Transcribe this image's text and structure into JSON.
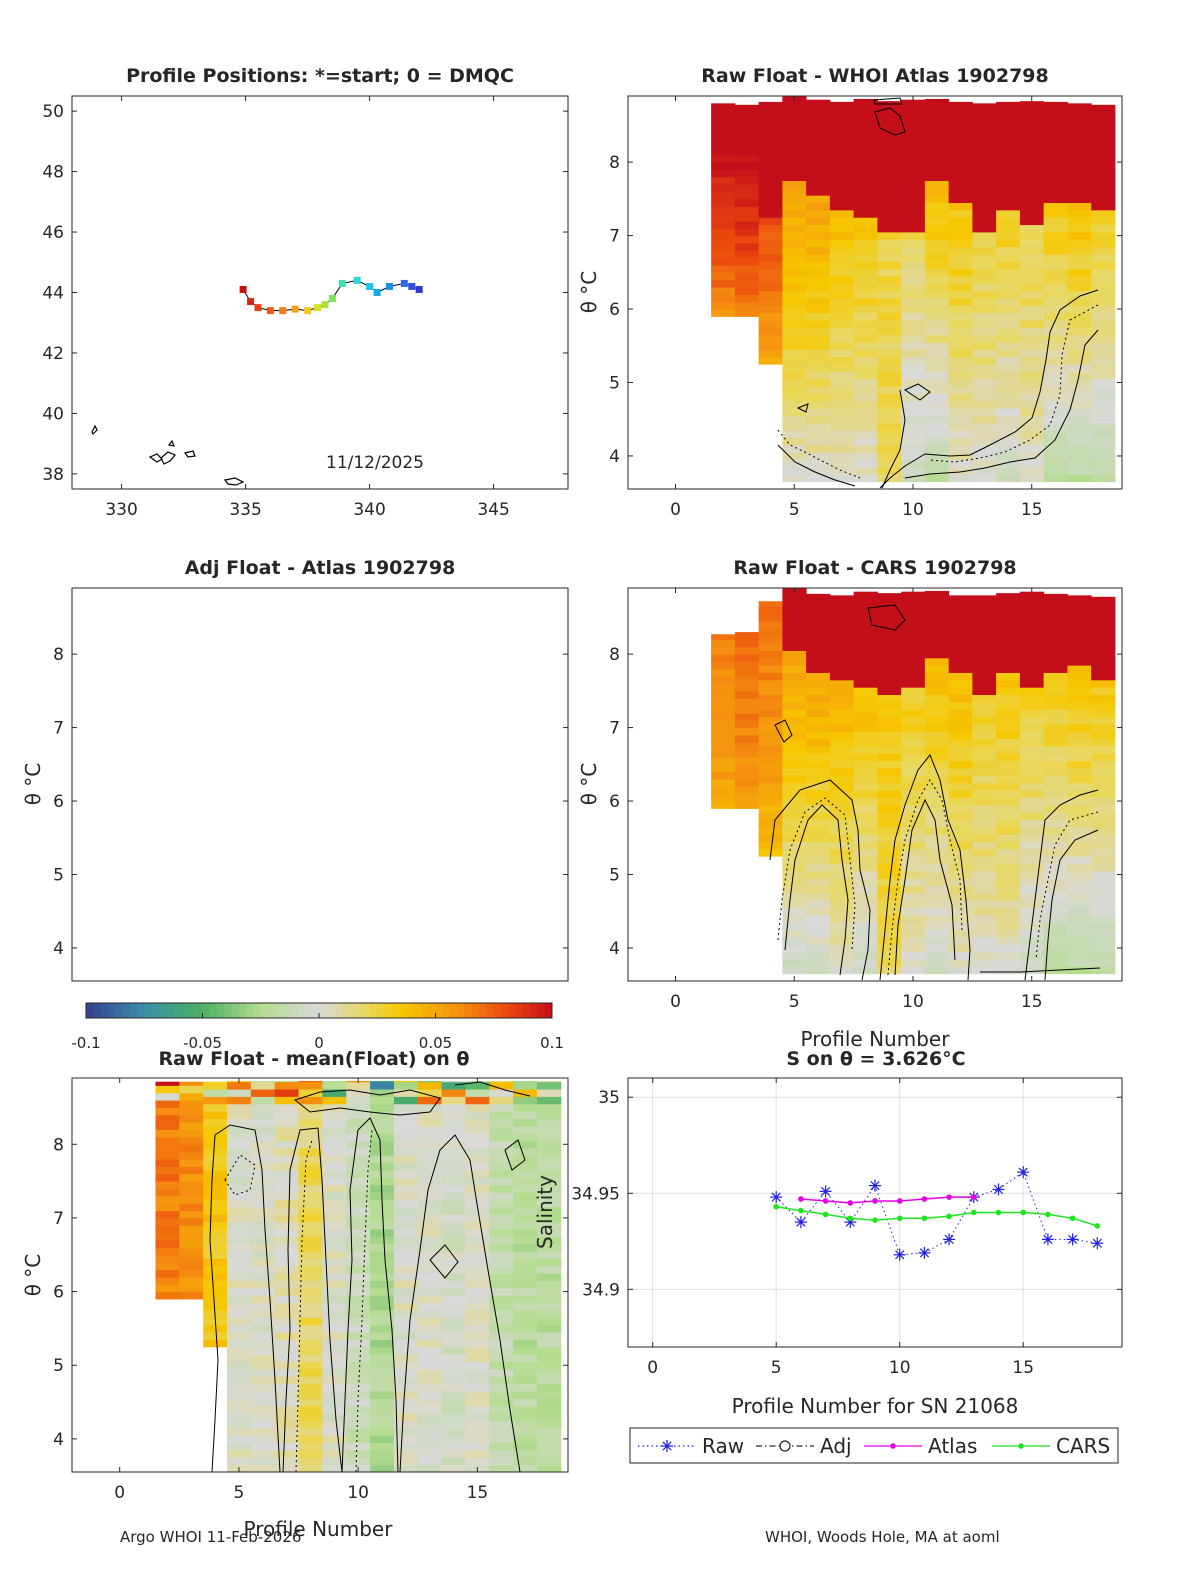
{
  "footer": {
    "left": "Argo WHOI 11-Feb-2026",
    "right": "WHOI, Woods Hole, MA at aoml"
  },
  "colorbar": {
    "min": -0.1,
    "max": 0.1,
    "ticks": [
      "-0.1",
      "-0.05",
      "0",
      "0.05",
      "0.1"
    ]
  },
  "chart_data": [
    {
      "id": "positions",
      "type": "scatter",
      "title": "Profile Positions: *=start; 0 = DMQC",
      "xlabel": "",
      "ylabel": "",
      "xlim": [
        328,
        348
      ],
      "ylim": [
        37.5,
        50.5
      ],
      "xticks": [
        "330",
        "335",
        "340",
        "345"
      ],
      "yticks": [
        "38",
        "40",
        "42",
        "44",
        "46",
        "48",
        "50"
      ],
      "date_label": "11/12/2025",
      "track": {
        "lon": [
          342.0,
          341.7,
          341.4,
          340.8,
          340.3,
          340.0,
          339.5,
          338.9,
          338.5,
          338.2,
          337.9,
          337.5,
          337.0,
          336.5,
          336.0,
          335.5,
          335.2,
          334.9
        ],
        "lat": [
          44.1,
          44.2,
          44.3,
          44.2,
          44.0,
          44.2,
          44.4,
          44.3,
          43.8,
          43.6,
          43.5,
          43.4,
          43.45,
          43.4,
          43.4,
          43.5,
          43.7,
          44.1
        ],
        "colors": [
          "#2b3fd0",
          "#2f55e0",
          "#3366ee",
          "#1d8ee6",
          "#18a9e6",
          "#22c3e8",
          "#2ed9de",
          "#38e3b0",
          "#7fe35a",
          "#a6e33a",
          "#d8e02a",
          "#f5c61f",
          "#f7a01a",
          "#f47c16",
          "#ef5a12",
          "#e6400f",
          "#d8250c",
          "#c8100a"
        ]
      }
    },
    {
      "id": "raw-atlas",
      "type": "heatmap",
      "title": "Raw Float - WHOI Atlas  1902798",
      "xlabel": "",
      "ylabel": "θ °C",
      "xlim": [
        -2,
        18.8
      ],
      "ylim": [
        3.55,
        8.9
      ],
      "xticks": [
        "0",
        "5",
        "10",
        "15"
      ],
      "yticks": [
        "4",
        "5",
        "6",
        "7",
        "8"
      ],
      "profiles": [
        2,
        3,
        4,
        5,
        6,
        7,
        8,
        9,
        10,
        11,
        12,
        13,
        14,
        15,
        16,
        17,
        18
      ],
      "theta_min": [
        5.9,
        5.9,
        5.25,
        3.65,
        3.65,
        3.65,
        3.65,
        3.65,
        3.65,
        3.65,
        3.65,
        3.65,
        3.65,
        3.65,
        3.65,
        3.65,
        3.65
      ],
      "theta_max": [
        8.8,
        8.78,
        8.82,
        8.9,
        8.85,
        8.82,
        8.86,
        8.83,
        8.85,
        8.86,
        8.82,
        8.8,
        8.82,
        8.83,
        8.82,
        8.8,
        8.78
      ],
      "red_above": [
        8.0,
        8.0,
        7.2,
        7.7,
        7.45,
        7.3,
        7.2,
        7.0,
        7.0,
        7.65,
        7.4,
        7.0,
        7.25,
        7.1,
        7.4,
        7.35,
        7.3
      ],
      "top_anomaly": [
        0.1,
        0.1,
        0.08,
        0.05,
        0.05,
        0.04,
        0.035,
        0.025,
        0.02,
        0.04,
        0.035,
        0.025,
        0.03,
        0.025,
        0.035,
        0.04,
        0.03
      ],
      "bottom_anomaly": [
        0.06,
        0.065,
        0.05,
        0.0,
        0.0,
        0.0,
        0.0,
        0.02,
        -0.01,
        -0.02,
        0.0,
        0.0,
        -0.01,
        0.0,
        -0.02,
        -0.02,
        -0.02
      ]
    },
    {
      "id": "adj-atlas",
      "type": "heatmap",
      "title": "Adj Float - Atlas  1902798",
      "xlabel": "",
      "ylabel": "θ °C",
      "xlim": [
        -2,
        18.8
      ],
      "ylim": [
        3.55,
        8.9
      ],
      "xticks": [],
      "yticks": [
        "4",
        "5",
        "6",
        "7",
        "8"
      ],
      "profiles": []
    },
    {
      "id": "raw-cars",
      "type": "heatmap",
      "title": "Raw Float - CARS  1902798",
      "xlabel": "Profile Number",
      "ylabel": "θ °C",
      "xlim": [
        -2,
        18.8
      ],
      "ylim": [
        3.55,
        8.9
      ],
      "xticks": [
        "0",
        "5",
        "10",
        "15"
      ],
      "yticks": [
        "4",
        "5",
        "6",
        "7",
        "8"
      ],
      "profiles": [
        2,
        3,
        4,
        5,
        6,
        7,
        8,
        9,
        10,
        11,
        12,
        13,
        14,
        15,
        16,
        17,
        18
      ],
      "theta_min": [
        5.9,
        5.9,
        5.25,
        3.65,
        3.65,
        3.65,
        3.65,
        3.65,
        3.65,
        3.65,
        3.65,
        3.65,
        3.65,
        3.65,
        3.65,
        3.65,
        3.65
      ],
      "theta_max": [
        8.27,
        8.3,
        8.72,
        8.9,
        8.82,
        8.8,
        8.85,
        8.83,
        8.85,
        8.86,
        8.8,
        8.8,
        8.83,
        8.85,
        8.82,
        8.8,
        8.78
      ],
      "red_above": [
        9.9,
        9.9,
        9.9,
        7.95,
        7.7,
        7.6,
        7.5,
        7.35,
        7.45,
        7.9,
        7.7,
        7.4,
        7.65,
        7.5,
        7.7,
        7.8,
        7.6
      ],
      "top_anomaly": [
        0.075,
        0.08,
        0.08,
        0.05,
        0.05,
        0.045,
        0.04,
        0.035,
        0.03,
        0.04,
        0.04,
        0.03,
        0.035,
        0.03,
        0.035,
        0.04,
        0.035
      ],
      "bottom_anomaly": [
        0.05,
        0.055,
        0.04,
        -0.01,
        -0.01,
        0.0,
        -0.01,
        0.02,
        0.0,
        -0.01,
        0.0,
        0.0,
        0.0,
        -0.01,
        -0.02,
        -0.02,
        -0.02
      ]
    },
    {
      "id": "raw-mean",
      "type": "heatmap",
      "title": "Raw Float - mean(Float) on θ",
      "xlabel": "Profile Number",
      "ylabel": "θ °C",
      "xlim": [
        -2,
        18.8
      ],
      "ylim": [
        3.55,
        8.9
      ],
      "xticks": [
        "0",
        "5",
        "10",
        "15"
      ],
      "yticks": [
        "4",
        "5",
        "6",
        "7",
        "8"
      ],
      "profiles": [
        2,
        3,
        4,
        5,
        6,
        7,
        8,
        9,
        10,
        11,
        12,
        13,
        14,
        15,
        16,
        17,
        18
      ],
      "theta_min": [
        5.9,
        5.9,
        5.25,
        3.55,
        3.55,
        3.55,
        3.55,
        3.55,
        3.55,
        3.55,
        3.55,
        3.55,
        3.55,
        3.55,
        3.55,
        3.55,
        3.55
      ],
      "theta_max": [
        8.85,
        8.85,
        8.85,
        8.86,
        8.86,
        8.86,
        8.86,
        8.86,
        8.86,
        8.86,
        8.86,
        8.86,
        8.86,
        8.86,
        8.86,
        8.86,
        8.86
      ],
      "column_anomaly": [
        0.065,
        0.06,
        0.035,
        0.0,
        0.0,
        0.005,
        0.02,
        0.0,
        -0.01,
        -0.025,
        0.0,
        0.0,
        -0.005,
        0.0,
        -0.015,
        -0.02,
        -0.02
      ]
    },
    {
      "id": "salinity",
      "type": "line",
      "title": "S on θ = 3.626°C",
      "xlabel": "Profile Number for SN 21068",
      "ylabel": "Salinity",
      "xlim": [
        -1,
        19
      ],
      "ylim": [
        34.87,
        35.01
      ],
      "xticks": [
        "0",
        "5",
        "10",
        "15"
      ],
      "yticks": [
        "34.9",
        "34.95",
        "35"
      ],
      "series": [
        {
          "name": "Raw",
          "color": "#2020e6",
          "marker": "asterisk",
          "x": [
            5,
            6,
            7,
            8,
            9,
            10,
            11,
            12,
            13,
            14,
            15,
            16,
            17,
            18
          ],
          "y": [
            34.948,
            34.935,
            34.951,
            34.935,
            34.954,
            34.918,
            34.919,
            34.926,
            34.948,
            34.952,
            34.961,
            34.926,
            34.926,
            34.924
          ]
        },
        {
          "name": "Adj",
          "color": "#262626",
          "marker": "circle",
          "x": [],
          "y": []
        },
        {
          "name": "Atlas",
          "color": "#e600e6",
          "marker": "dot",
          "x": [
            6,
            7,
            8,
            9,
            10,
            11,
            12,
            13
          ],
          "y": [
            34.947,
            34.946,
            34.945,
            34.946,
            34.946,
            34.947,
            34.948,
            34.948
          ]
        },
        {
          "name": "CARS",
          "color": "#1ee61e",
          "marker": "dot",
          "x": [
            5,
            6,
            7,
            8,
            9,
            10,
            11,
            12,
            13,
            14,
            15,
            16,
            17,
            18
          ],
          "y": [
            34.943,
            34.941,
            34.939,
            34.937,
            34.936,
            34.937,
            34.937,
            34.938,
            34.94,
            34.94,
            34.94,
            34.939,
            34.937,
            34.933
          ]
        }
      ]
    }
  ]
}
